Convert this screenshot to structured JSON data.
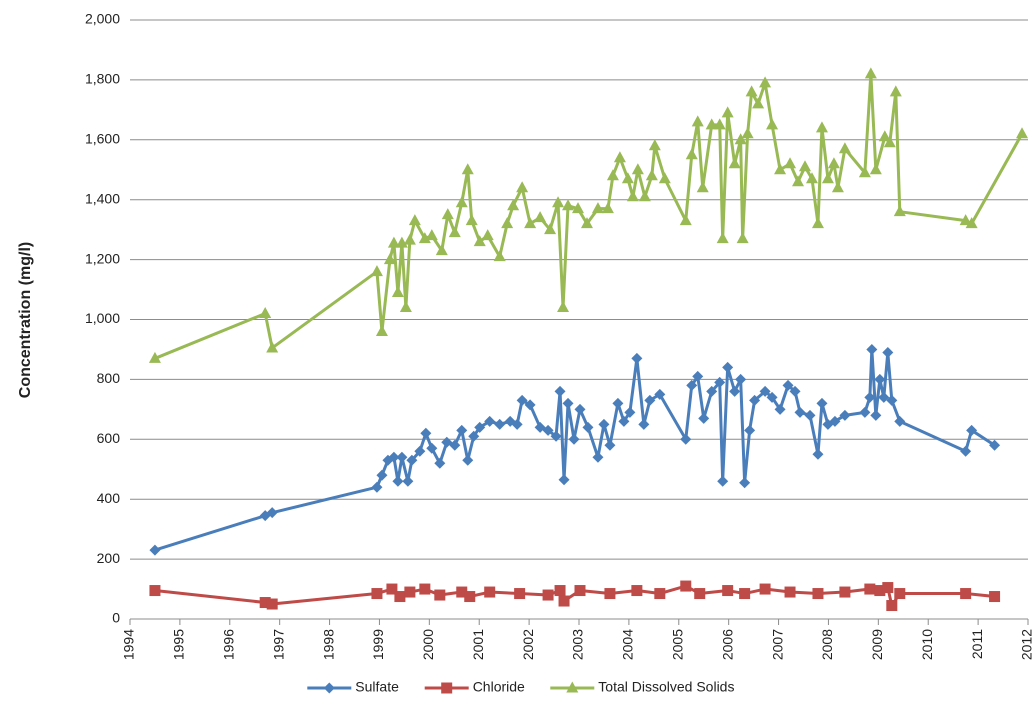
{
  "chart_data": {
    "type": "line",
    "y_label": "Concentration (mg/l)",
    "xlim": [
      1994,
      2012
    ],
    "xticks": [
      1994,
      1995,
      1996,
      1997,
      1998,
      1999,
      2000,
      2001,
      2002,
      2003,
      2004,
      2005,
      2006,
      2007,
      2008,
      2009,
      2010,
      2011,
      2012
    ],
    "ylim": [
      0,
      2000
    ],
    "yticks": [
      0,
      200,
      400,
      600,
      800,
      {
        "value": 1000,
        "label": "1,000"
      },
      {
        "value": 1200,
        "label": "1,200"
      },
      {
        "value": 1400,
        "label": "1,400"
      },
      {
        "value": 1600,
        "label": "1,600"
      },
      {
        "value": 1800,
        "label": "1,800"
      },
      {
        "value": 2000,
        "label": "2,000"
      }
    ],
    "grid": true,
    "legend": "bottom",
    "series": [
      {
        "name": "Sulfate",
        "color": "#4a7ebb",
        "marker": "diamond",
        "x": [
          1994.5,
          1996.71,
          1996.85,
          1998.95,
          1999.05,
          1999.17,
          1999.29,
          1999.37,
          1999.45,
          1999.57,
          1999.65,
          1999.81,
          1999.93,
          2000.05,
          2000.21,
          2000.35,
          2000.51,
          2000.65,
          2000.77,
          2000.89,
          2001.01,
          2001.21,
          2001.41,
          2001.62,
          2001.76,
          2001.86,
          2002.02,
          2002.22,
          2002.38,
          2002.54,
          2002.62,
          2002.7,
          2002.78,
          2002.9,
          2003.02,
          2003.18,
          2003.38,
          2003.5,
          2003.62,
          2003.78,
          2003.9,
          2004.02,
          2004.16,
          2004.3,
          2004.42,
          2004.62,
          2005.14,
          2005.26,
          2005.38,
          2005.5,
          2005.66,
          2005.82,
          2005.88,
          2005.98,
          2006.12,
          2006.24,
          2006.32,
          2006.42,
          2006.52,
          2006.73,
          2006.87,
          2007.03,
          2007.19,
          2007.33,
          2007.43,
          2007.63,
          2007.79,
          2007.87,
          2007.99,
          2008.13,
          2008.33,
          2008.73,
          2008.83,
          2008.87,
          2008.95,
          2009.03,
          2009.11,
          2009.19,
          2009.27,
          2009.43,
          2010.75,
          2010.87,
          2011.33
        ],
        "values": [
          230,
          345,
          355,
          440,
          480,
          530,
          540,
          460,
          540,
          460,
          530,
          560,
          620,
          570,
          520,
          590,
          580,
          630,
          530,
          610,
          640,
          660,
          650,
          660,
          650,
          730,
          715,
          640,
          630,
          610,
          760,
          465,
          720,
          600,
          700,
          640,
          540,
          650,
          580,
          720,
          660,
          690,
          870,
          650,
          730,
          750,
          600,
          780,
          810,
          670,
          760,
          790,
          460,
          840,
          760,
          800,
          455,
          630,
          730,
          760,
          740,
          700,
          780,
          760,
          690,
          680,
          550,
          720,
          650,
          660,
          680,
          690,
          740,
          900,
          680,
          800,
          740,
          890,
          730,
          660,
          560,
          630,
          580
        ]
      },
      {
        "name": "Chloride",
        "color": "#be4b48",
        "marker": "square",
        "x": [
          1994.5,
          1996.71,
          1996.85,
          1998.95,
          1999.25,
          1999.41,
          1999.61,
          1999.91,
          2000.21,
          2000.65,
          2000.81,
          2001.21,
          2001.81,
          2002.38,
          2002.62,
          2002.7,
          2003.02,
          2003.62,
          2004.16,
          2004.62,
          2005.14,
          2005.42,
          2005.98,
          2006.32,
          2006.73,
          2007.23,
          2007.79,
          2008.33,
          2008.83,
          2009.03,
          2009.19,
          2009.27,
          2009.43,
          2010.75,
          2011.33
        ],
        "values": [
          95,
          55,
          50,
          85,
          100,
          75,
          90,
          100,
          80,
          90,
          75,
          90,
          85,
          80,
          95,
          60,
          95,
          85,
          95,
          85,
          110,
          85,
          95,
          85,
          100,
          90,
          85,
          90,
          100,
          95,
          105,
          45,
          85,
          85,
          75
        ]
      },
      {
        "name": "Total Dissolved Solids",
        "color": "#98b954",
        "marker": "triangle",
        "x": [
          1994.5,
          1996.71,
          1996.85,
          1998.95,
          1999.05,
          1999.21,
          1999.29,
          1999.37,
          1999.45,
          1999.53,
          1999.61,
          1999.71,
          1999.91,
          2000.05,
          2000.25,
          2000.37,
          2000.51,
          2000.65,
          2000.77,
          2000.85,
          2001.01,
          2001.17,
          2001.41,
          2001.56,
          2001.68,
          2001.86,
          2002.02,
          2002.22,
          2002.42,
          2002.58,
          2002.68,
          2002.78,
          2002.98,
          2003.16,
          2003.38,
          2003.58,
          2003.68,
          2003.82,
          2003.98,
          2004.08,
          2004.18,
          2004.32,
          2004.46,
          2004.52,
          2004.72,
          2005.14,
          2005.26,
          2005.38,
          2005.48,
          2005.66,
          2005.82,
          2005.88,
          2005.98,
          2006.12,
          2006.24,
          2006.28,
          2006.38,
          2006.46,
          2006.59,
          2006.73,
          2006.87,
          2007.03,
          2007.23,
          2007.39,
          2007.53,
          2007.67,
          2007.79,
          2007.87,
          2007.99,
          2008.11,
          2008.19,
          2008.33,
          2008.73,
          2008.85,
          2008.95,
          2009.13,
          2009.23,
          2009.35,
          2009.43,
          2010.75,
          2010.87,
          2011.88
        ],
        "values": [
          870,
          1020,
          905,
          1160,
          960,
          1200,
          1255,
          1090,
          1255,
          1040,
          1265,
          1330,
          1270,
          1280,
          1230,
          1350,
          1290,
          1390,
          1500,
          1330,
          1260,
          1280,
          1210,
          1320,
          1380,
          1440,
          1320,
          1340,
          1300,
          1390,
          1040,
          1380,
          1370,
          1320,
          1370,
          1370,
          1480,
          1540,
          1470,
          1410,
          1500,
          1410,
          1480,
          1580,
          1470,
          1330,
          1550,
          1660,
          1440,
          1650,
          1650,
          1270,
          1690,
          1520,
          1600,
          1270,
          1620,
          1760,
          1720,
          1790,
          1650,
          1500,
          1520,
          1460,
          1510,
          1470,
          1320,
          1640,
          1470,
          1520,
          1440,
          1570,
          1490,
          1820,
          1500,
          1610,
          1590,
          1760,
          1360,
          1330,
          1320,
          1620
        ]
      }
    ]
  }
}
